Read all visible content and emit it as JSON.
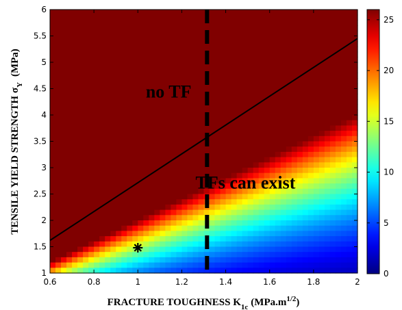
{
  "chart_data": {
    "type": "heatmap",
    "title": "",
    "xlabel": "FRACTURE TOUGHNESS K",
    "xlabel_sub": "1c",
    "xlabel_unit": "(MPa.m",
    "xlabel_sup": "1/2",
    "xlabel_close": ")",
    "ylabel": "TENSILE YIELD STRENGTH  σ",
    "ylabel_sub": "Y",
    "ylabel_unit": "(MPa)",
    "xlim": [
      0.6,
      2.0
    ],
    "ylim": [
      1.0,
      6.0
    ],
    "x_ticks": [
      "0.6",
      "0.8",
      "1",
      "1.2",
      "1.4",
      "1.6",
      "1.8",
      "2"
    ],
    "x_tick_values": [
      0.6,
      0.8,
      1.0,
      1.2,
      1.4,
      1.6,
      1.8,
      2.0
    ],
    "y_ticks": [
      "1",
      "1.5",
      "2",
      "2.5",
      "3",
      "3.5",
      "4",
      "4.5",
      "5",
      "5.5",
      "6"
    ],
    "y_tick_values": [
      1.0,
      1.5,
      2.0,
      2.5,
      3.0,
      3.5,
      4.0,
      4.5,
      5.0,
      5.5,
      6.0
    ],
    "colorbar": {
      "range": [
        0,
        26
      ],
      "ticks": [
        "0",
        "5",
        "10",
        "15",
        "20",
        "25"
      ],
      "tick_values": [
        0,
        5,
        10,
        15,
        20,
        25
      ],
      "colormap": "jet"
    },
    "field": "value ∝ (σ_Y / K_1c)^2, saturating at 26",
    "field_constant": 6.5,
    "field_max": 26,
    "grid_x": 56,
    "grid_y": 50,
    "boundary_line": {
      "x": [
        0.6,
        2.0
      ],
      "y": [
        1.62,
        5.45
      ],
      "style": "solid",
      "color": "#000000"
    },
    "threshold_line": {
      "x": 1.315,
      "style": "dashed",
      "color": "#000000"
    },
    "marker": {
      "x": 1.0,
      "y": 1.48,
      "symbol": "*"
    },
    "annotations": [
      {
        "text": "no TF",
        "x": 1.14,
        "y": 4.45
      },
      {
        "text": "TFs can exist",
        "x": 1.49,
        "y": 2.72
      }
    ]
  }
}
